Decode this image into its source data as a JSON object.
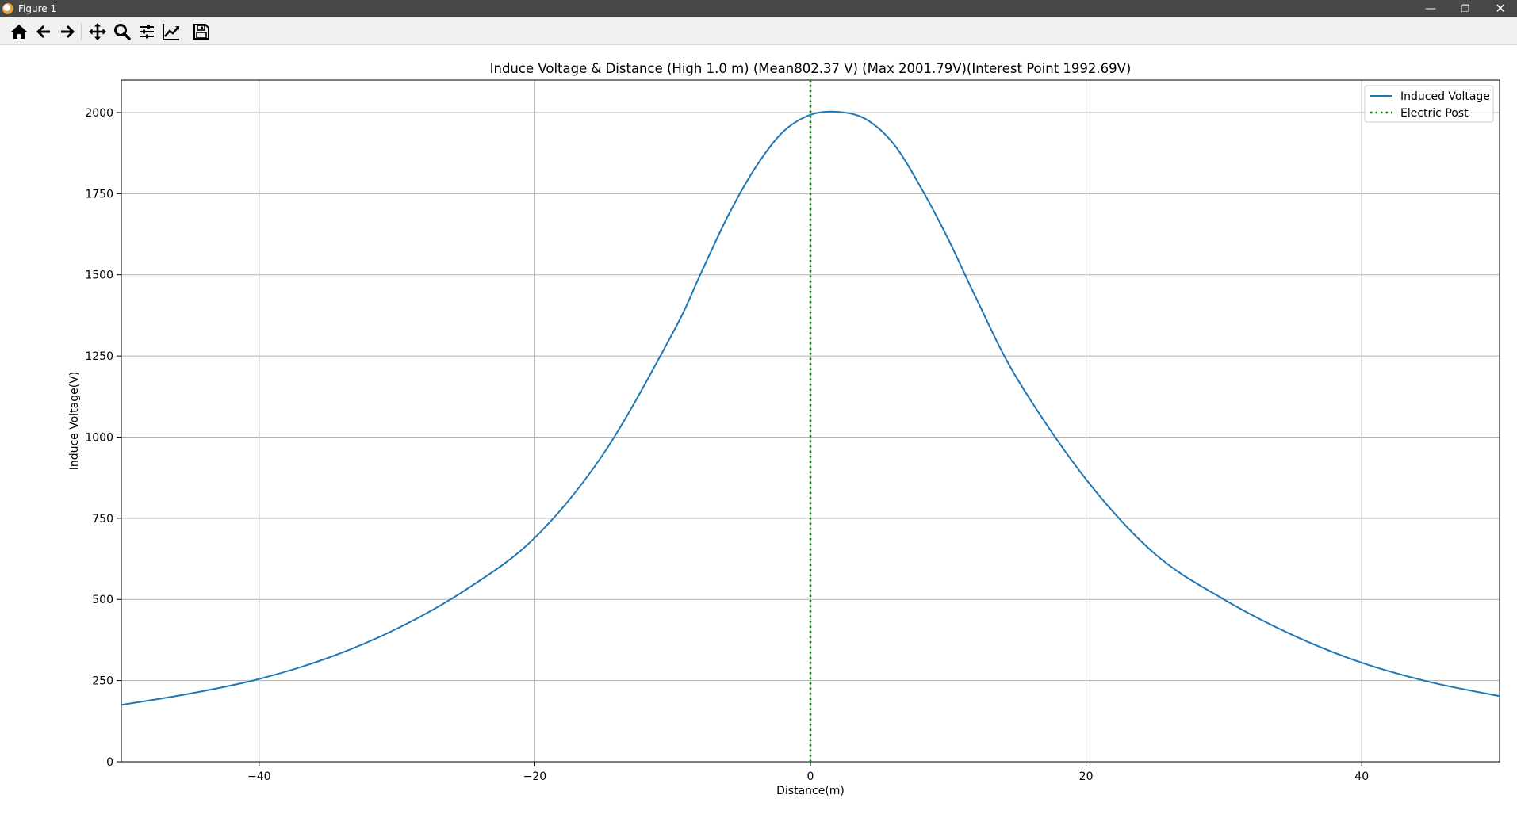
{
  "window": {
    "title": "Figure 1",
    "minimize_icon": "minimize-icon",
    "restore_icon": "restore-icon",
    "close_icon": "close-icon"
  },
  "toolbar": {
    "buttons": [
      "home-icon",
      "back-arrow-icon",
      "forward-arrow-icon",
      "pan-icon",
      "zoom-icon",
      "configure-subplots-icon",
      "edit-axis-icon",
      "save-icon"
    ]
  },
  "colors": {
    "series_line": "#1f77b4",
    "post_line": "#008000",
    "grid": "#b0b0b0"
  },
  "chart_data": {
    "type": "line",
    "title": "Induce Voltage & Distance (High 1.0 m) (Mean802.37 V) (Max 2001.79V)(Interest Point 1992.69V)",
    "xlabel": "Distance(m)",
    "ylabel": "Induce Voltage(V)",
    "xlim": [
      -50,
      50
    ],
    "ylim": [
      0,
      2100
    ],
    "xticks": [
      -40,
      -20,
      0,
      20,
      40
    ],
    "xtick_labels": [
      "−40",
      "−20",
      "0",
      "20",
      "40"
    ],
    "yticks": [
      0,
      250,
      500,
      750,
      1000,
      1250,
      1500,
      1750,
      2000
    ],
    "ytick_labels": [
      "0",
      "250",
      "500",
      "750",
      "1000",
      "1250",
      "1500",
      "1750",
      "2000"
    ],
    "grid": true,
    "legend": {
      "placement": "top-right",
      "entries": [
        "Induced Voltage",
        "Electric Post"
      ]
    },
    "series": [
      {
        "name": "Induced Voltage",
        "style": "solid",
        "x": [
          -50,
          -45,
          -40,
          -35,
          -30,
          -25,
          -20,
          -15,
          -10,
          -8,
          -6,
          -4,
          -2,
          0,
          2,
          4,
          6,
          8,
          10,
          12,
          15,
          20,
          25,
          30,
          35,
          40,
          45,
          50
        ],
        "y": [
          175,
          210,
          255,
          320,
          410,
          530,
          690,
          950,
          1320,
          1500,
          1680,
          1830,
          1940,
          1993,
          2002,
          1980,
          1905,
          1770,
          1610,
          1430,
          1180,
          870,
          640,
          500,
          390,
          305,
          245,
          202
        ]
      },
      {
        "name": "Electric Post",
        "style": "dotted",
        "x": [
          0,
          0
        ],
        "y": [
          0,
          2100
        ]
      }
    ]
  }
}
